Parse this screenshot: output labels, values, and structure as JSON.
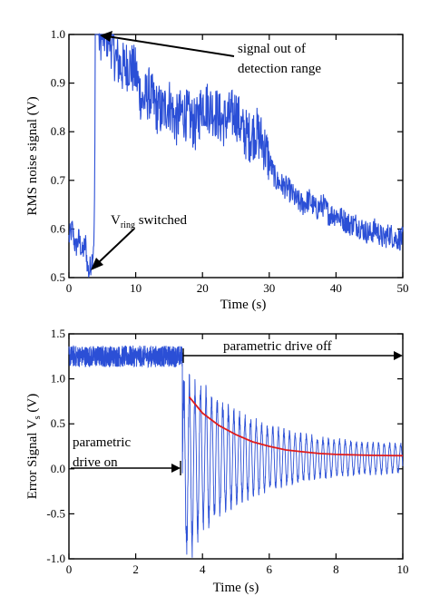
{
  "chart_data": [
    {
      "type": "line",
      "xlabel": "Time (s)",
      "ylabel": "RMS noise signal (V)",
      "xlim": [
        0,
        50
      ],
      "ylim": [
        0.5,
        1.0
      ],
      "x_ticks": [
        0,
        10,
        20,
        30,
        40,
        50
      ],
      "y_ticks": [
        0.5,
        0.6,
        0.7,
        0.8,
        0.9,
        1.0
      ],
      "x_tick_labels": [
        "0",
        "10",
        "20",
        "30",
        "40",
        "50"
      ],
      "y_tick_labels": [
        "0.5",
        "0.6",
        "0.7",
        "0.8",
        "0.9",
        "1.0"
      ],
      "grid": false,
      "line_color": "#2b4fd6",
      "series": [
        {
          "x": [
            0,
            0.5,
            1,
            1.5,
            2,
            2.5,
            2.8,
            3.0,
            3.3,
            3.6,
            3.8,
            4.0,
            5,
            6,
            7,
            8,
            9,
            10,
            11,
            12,
            13,
            14,
            15,
            16,
            17,
            18,
            19,
            20,
            21,
            22,
            23,
            24,
            25,
            26,
            27,
            28,
            29,
            30,
            31,
            32,
            33,
            34,
            35,
            36,
            37,
            38,
            39,
            40,
            41,
            42,
            43,
            44,
            45,
            46,
            47,
            48,
            49,
            50
          ],
          "y": [
            0.58,
            0.6,
            0.56,
            0.58,
            0.55,
            0.57,
            0.52,
            0.51,
            0.53,
            0.55,
            0.6,
            1.0,
            1.0,
            1.0,
            0.95,
            0.93,
            0.94,
            0.92,
            0.86,
            0.88,
            0.85,
            0.84,
            0.86,
            0.82,
            0.84,
            0.83,
            0.81,
            0.86,
            0.85,
            0.84,
            0.82,
            0.83,
            0.84,
            0.8,
            0.79,
            0.8,
            0.78,
            0.74,
            0.7,
            0.69,
            0.68,
            0.66,
            0.65,
            0.66,
            0.64,
            0.65,
            0.63,
            0.63,
            0.62,
            0.61,
            0.61,
            0.6,
            0.59,
            0.6,
            0.58,
            0.59,
            0.58,
            0.58
          ]
        }
      ],
      "annotations": [
        {
          "text_line1": "signal out of",
          "text_line2": "detection range",
          "arrow_to": [
            4.8,
            1.0
          ]
        },
        {
          "text_main": "V",
          "text_sub": "ring",
          "text_rest": " switched",
          "arrow_to": [
            3.0,
            0.505
          ]
        }
      ]
    },
    {
      "type": "line",
      "xlabel": "Time (s)",
      "ylabel": "Error Signal V",
      "ylabel_sub": "s",
      "ylabel_rest": " (V)",
      "xlim": [
        0,
        10
      ],
      "ylim": [
        -1.0,
        1.5
      ],
      "x_ticks": [
        0,
        2,
        4,
        6,
        8,
        10
      ],
      "y_ticks": [
        -1.0,
        -0.5,
        0.0,
        0.5,
        1.0,
        1.5
      ],
      "x_tick_labels": [
        "0",
        "2",
        "4",
        "6",
        "8",
        "10"
      ],
      "y_tick_labels": [
        "-1.0",
        "-0.5",
        "0.0",
        "0.5",
        "1.0",
        "1.5"
      ],
      "grid": false,
      "line_color": "#2b4fd6",
      "fit_color": "#e01b1b",
      "series": [
        {
          "description_free": true,
          "drive_on_until": 3.4,
          "drive_on_level": 1.25,
          "drive_on_noise": 0.12,
          "decay_amplitude_start": 1.0,
          "decay_tau": 1.8,
          "decay_offset": 0.12,
          "decay_floor": 0.15,
          "oscillation_freq": 6.0
        }
      ],
      "fit_curve": {
        "x_start": 3.6,
        "x_end": 10,
        "y_values": [
          0.8,
          0.62,
          0.48,
          0.38,
          0.3,
          0.25,
          0.21,
          0.19,
          0.17,
          0.16,
          0.155,
          0.15,
          0.148,
          0.146
        ],
        "x_values": [
          3.6,
          4.0,
          4.5,
          5.0,
          5.5,
          6.0,
          6.5,
          7.0,
          7.5,
          8.0,
          8.5,
          9.0,
          9.5,
          10.0
        ]
      },
      "annotations": [
        {
          "text": "parametric drive off",
          "arrow_from": 3.4,
          "arrow_to": 10
        },
        {
          "text_line1": "parametric",
          "text_line2": "drive on",
          "arrow_from": 0,
          "arrow_to": 3.3
        }
      ]
    }
  ]
}
